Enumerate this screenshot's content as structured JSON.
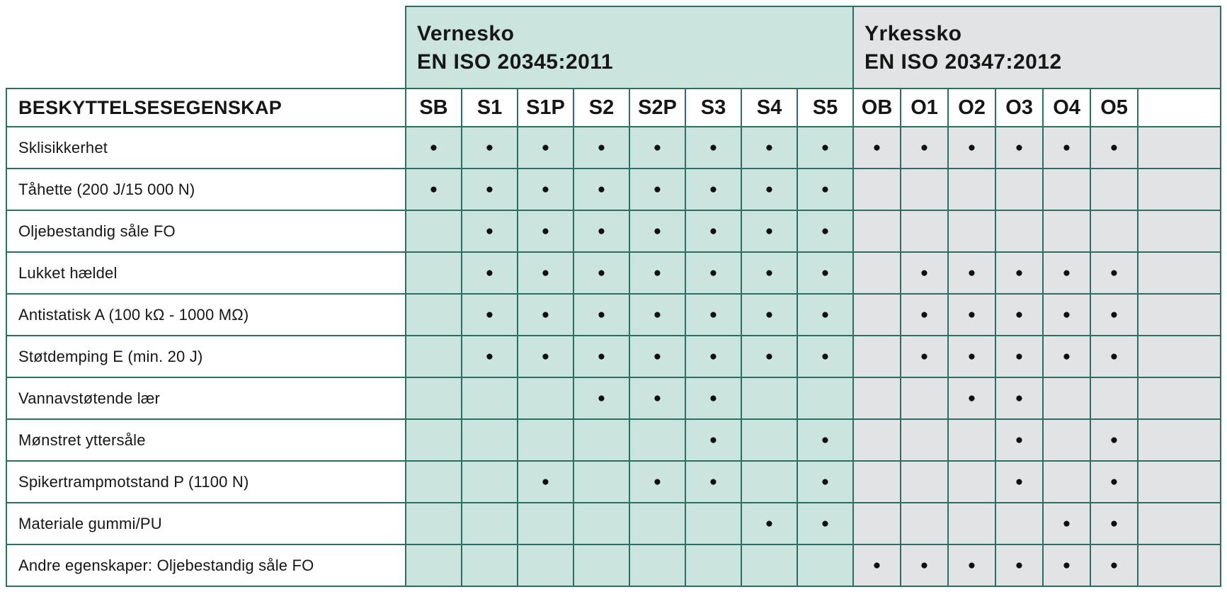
{
  "table": {
    "corner_label": "BESKYTTELSESEGENSKAP",
    "groups": [
      {
        "title": "Vernesko",
        "standard": "EN ISO 20345:2011",
        "color": "#cbe5de",
        "columns": [
          "SB",
          "S1",
          "S1P",
          "S2",
          "S2P",
          "S3",
          "S4",
          "S5"
        ]
      },
      {
        "title": "Yrkessko",
        "standard": "EN ISO 20347:2012",
        "color": "#e2e3e4",
        "columns": [
          "OB",
          "O1",
          "O2",
          "O3",
          "O4",
          "O5"
        ]
      }
    ],
    "columns": [
      "SB",
      "S1",
      "S1P",
      "S2",
      "S2P",
      "S3",
      "S4",
      "S5",
      "OB",
      "O1",
      "O2",
      "O3",
      "O4",
      "O5"
    ],
    "dot_glyph": "●",
    "rows": [
      {
        "label": "Sklisikkerhet",
        "cells": [
          "●",
          "●",
          "●",
          "●",
          "●",
          "●",
          "●",
          "●",
          "●",
          "●",
          "●",
          "●",
          "●",
          "●"
        ]
      },
      {
        "label": "Tåhette (200 J/15 000 N)",
        "cells": [
          "●",
          "●",
          "●",
          "●",
          "●",
          "●",
          "●",
          "●",
          "",
          "",
          "",
          "",
          "",
          ""
        ]
      },
      {
        "label": "Oljebestandig såle FO",
        "cells": [
          "",
          "●",
          "●",
          "●",
          "●",
          "●",
          "●",
          "●",
          "",
          "",
          "",
          "",
          "",
          ""
        ]
      },
      {
        "label": "Lukket hældel",
        "cells": [
          "",
          "●",
          "●",
          "●",
          "●",
          "●",
          "●",
          "●",
          "",
          "●",
          "●",
          "●",
          "●",
          "●"
        ]
      },
      {
        "label": "Antistatisk A (100 kΩ - 1000 MΩ)",
        "cells": [
          "",
          "●",
          "●",
          "●",
          "●",
          "●",
          "●",
          "●",
          "",
          "●",
          "●",
          "●",
          "●",
          "●"
        ]
      },
      {
        "label": "Støtdemping E (min. 20 J)",
        "cells": [
          "",
          "●",
          "●",
          "●",
          "●",
          "●",
          "●",
          "●",
          "",
          "●",
          "●",
          "●",
          "●",
          "●"
        ]
      },
      {
        "label": "Vannavstøtende lær",
        "cells": [
          "",
          "",
          "",
          "●",
          "●",
          "●",
          "",
          "",
          "",
          "",
          "●",
          "●",
          "",
          ""
        ]
      },
      {
        "label": "Mønstret yttersåle",
        "cells": [
          "",
          "",
          "",
          "",
          "",
          "●",
          "",
          "●",
          "",
          "",
          "",
          "●",
          "",
          "●"
        ]
      },
      {
        "label": "Spikertrampmotstand P (1100 N)",
        "cells": [
          "",
          "",
          "●",
          "",
          "●",
          "●",
          "",
          "●",
          "",
          "",
          "",
          "●",
          "",
          "●"
        ]
      },
      {
        "label": "Materiale gummi/PU",
        "cells": [
          "",
          "",
          "",
          "",
          "",
          "",
          "●",
          "●",
          "",
          "",
          "",
          "",
          "●",
          "●"
        ]
      },
      {
        "label": "Andre egenskaper: Oljebestandig såle FO",
        "cells": [
          "",
          "",
          "",
          "",
          "",
          "",
          "",
          "",
          "●",
          "●",
          "●",
          "●",
          "●",
          "●"
        ]
      }
    ],
    "colors": {
      "border": "#2c6e61",
      "green": "#cbe5de",
      "gray": "#e2e3e4",
      "text": "#161616",
      "dot": "#101010"
    }
  }
}
